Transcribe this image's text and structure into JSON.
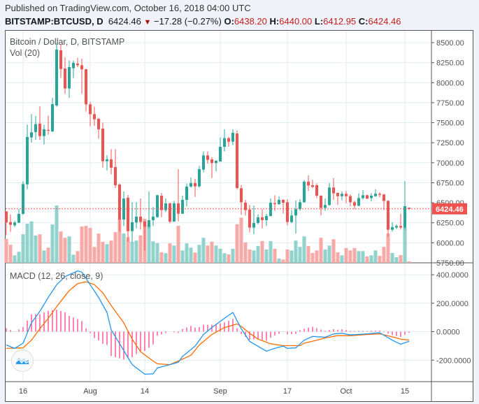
{
  "header": {
    "published": "Published on TradingView.com, October 16, 2018 04:00 UTC",
    "symbol": "BITSTAMP:BTCUSD, D",
    "last": "6424.46",
    "change": "−17.28 (−0.27%)",
    "o_label": "O:",
    "o": "6438.20",
    "h_label": "H:",
    "h": "6440.00",
    "l_label": "L:",
    "l": "6412.95",
    "c_label": "C:",
    "c": "6424.46"
  },
  "colors": {
    "up": "#26a69a",
    "down": "#ef5350",
    "up_vol": "#92d2cc",
    "down_vol": "#f7a9a7",
    "macd": "#2196f3",
    "signal": "#ff6d00",
    "histogram": "#ff0a6c",
    "grid": "#e1ecf2"
  },
  "chart_data": [
    {
      "type": "candlestick",
      "title": "Bitcoin / Dollar, D, BITSTAMP",
      "volume_label": "Vol (20)",
      "last_price_label": "6424.46",
      "ylim": [
        5750,
        8500
      ],
      "price_ticks": [
        "8500.00",
        "8250.00",
        "8000.00",
        "7750.00",
        "7500.00",
        "7250.00",
        "7000.00",
        "6750.00",
        "6500.00",
        "6250.00",
        "6000.00",
        "5750.00"
      ],
      "time_ticks": [
        {
          "label": "16",
          "date": "2018-07-16"
        },
        {
          "label": "Aug",
          "date": "2018-08-01"
        },
        {
          "label": "14",
          "date": "2018-08-14"
        },
        {
          "label": "Sep",
          "date": "2018-09-01"
        },
        {
          "label": "17",
          "date": "2018-09-17"
        },
        {
          "label": "Oct",
          "date": "2018-10-01"
        },
        {
          "label": "15",
          "date": "2018-10-15"
        }
      ],
      "start_date": "2018-07-12",
      "candles": [
        [
          6393,
          6393,
          6094,
          6254,
          102
        ],
        [
          6259,
          6353,
          6137,
          6225,
          77
        ],
        [
          6218,
          6272,
          6196,
          6254,
          32
        ],
        [
          6251,
          6420,
          6246,
          6361,
          47
        ],
        [
          6361,
          6769,
          6350,
          6734,
          122
        ],
        [
          6731,
          7476,
          6670,
          7322,
          167
        ],
        [
          7316,
          7607,
          7252,
          7380,
          177
        ],
        [
          7383,
          7584,
          7287,
          7482,
          117
        ],
        [
          7488,
          7706,
          7287,
          7333,
          122
        ],
        [
          7333,
          7473,
          7229,
          7418,
          53
        ],
        [
          7409,
          7589,
          7351,
          7400,
          65
        ],
        [
          7392,
          7811,
          7383,
          7732,
          164
        ],
        [
          7715,
          8490,
          7700,
          8413,
          245
        ],
        [
          8404,
          8480,
          8058,
          8171,
          134
        ],
        [
          8177,
          8317,
          7863,
          7927,
          107
        ],
        [
          7927,
          8276,
          7811,
          8195,
          113
        ],
        [
          8180,
          8276,
          8058,
          8247,
          35
        ],
        [
          8238,
          8311,
          8195,
          8218,
          50
        ],
        [
          8218,
          8299,
          7863,
          8166,
          155
        ],
        [
          8169,
          8169,
          7642,
          7729,
          158
        ],
        [
          7729,
          7760,
          7456,
          7607,
          149
        ],
        [
          7607,
          7700,
          7461,
          7543,
          68
        ],
        [
          7549,
          7560,
          7301,
          7418,
          125
        ],
        [
          7426,
          7502,
          6938,
          7019,
          90
        ],
        [
          7019,
          7095,
          6903,
          7042,
          80
        ],
        [
          7042,
          7170,
          6856,
          6938,
          95
        ],
        [
          6946,
          7170,
          6684,
          6719,
          131
        ],
        [
          6728,
          6740,
          6137,
          6291,
          188
        ],
        [
          6291,
          6641,
          6210,
          6553,
          125
        ],
        [
          6562,
          6597,
          6012,
          6146,
          110
        ],
        [
          6146,
          6507,
          6012,
          6257,
          90
        ],
        [
          6254,
          6507,
          6181,
          6327,
          95
        ],
        [
          6327,
          6553,
          6166,
          6260,
          117
        ],
        [
          6265,
          6270,
          5902,
          6201,
          188
        ],
        [
          6201,
          6641,
          6180,
          6283,
          160
        ],
        [
          6283,
          6449,
          6210,
          6327,
          92
        ],
        [
          6321,
          6600,
          6312,
          6594,
          84
        ],
        [
          6588,
          6623,
          6321,
          6408,
          45
        ],
        [
          6408,
          6553,
          6385,
          6492,
          41
        ],
        [
          6492,
          6500,
          6245,
          6265,
          83
        ],
        [
          6265,
          6524,
          6262,
          6492,
          74
        ],
        [
          6492,
          6920,
          6268,
          6364,
          158
        ],
        [
          6364,
          6588,
          6360,
          6536,
          53
        ],
        [
          6536,
          6740,
          6457,
          6702,
          83
        ],
        [
          6702,
          6815,
          6690,
          6746,
          65
        ],
        [
          6746,
          6798,
          6574,
          6705,
          44
        ],
        [
          6705,
          6961,
          6690,
          6920,
          77
        ],
        [
          6914,
          7141,
          6879,
          7092,
          107
        ],
        [
          7092,
          7141,
          6990,
          7036,
          74
        ],
        [
          7042,
          7068,
          6809,
          6996,
          90
        ],
        [
          6996,
          7030,
          6894,
          7025,
          74
        ],
        [
          7016,
          7316,
          7010,
          7199,
          60
        ],
        [
          7199,
          7418,
          7141,
          7307,
          41
        ],
        [
          7307,
          7320,
          7200,
          7263,
          36
        ],
        [
          7263,
          7418,
          7220,
          7374,
          60
        ],
        [
          7365,
          7403,
          6670,
          6684,
          165
        ],
        [
          6681,
          6719,
          6350,
          6507,
          193
        ],
        [
          6501,
          6536,
          6341,
          6408,
          87
        ],
        [
          6414,
          6472,
          6129,
          6190,
          57
        ],
        [
          6190,
          6466,
          6108,
          6248,
          53
        ],
        [
          6248,
          6356,
          6230,
          6318,
          72
        ],
        [
          6318,
          6420,
          6181,
          6283,
          93
        ],
        [
          6283,
          6361,
          6210,
          6335,
          57
        ],
        [
          6335,
          6553,
          6330,
          6501,
          93
        ],
        [
          6495,
          6594,
          6399,
          6484,
          60
        ],
        [
          6484,
          6580,
          6475,
          6536,
          18
        ],
        [
          6536,
          6545,
          6367,
          6501,
          14
        ],
        [
          6507,
          6545,
          6216,
          6259,
          57
        ],
        [
          6259,
          6408,
          6245,
          6341,
          53
        ],
        [
          6341,
          6530,
          6117,
          6420,
          95
        ],
        [
          6420,
          6545,
          6400,
          6507,
          68
        ],
        [
          6507,
          6786,
          6500,
          6763,
          113
        ],
        [
          6763,
          6842,
          6647,
          6716,
          72
        ],
        [
          6719,
          6786,
          6681,
          6699,
          42
        ],
        [
          6719,
          6740,
          6559,
          6588,
          53
        ],
        [
          6588,
          6594,
          6341,
          6437,
          107
        ],
        [
          6437,
          6553,
          6399,
          6472,
          57
        ],
        [
          6472,
          6746,
          6465,
          6690,
          74
        ],
        [
          6690,
          6807,
          6536,
          6617,
          101
        ],
        [
          6623,
          6630,
          6472,
          6582,
          45
        ],
        [
          6582,
          6641,
          6530,
          6612,
          32
        ],
        [
          6612,
          6647,
          6495,
          6582,
          63
        ],
        [
          6582,
          6603,
          6457,
          6507,
          53
        ],
        [
          6507,
          6524,
          6420,
          6463,
          63
        ],
        [
          6463,
          6617,
          6455,
          6559,
          50
        ],
        [
          6559,
          6658,
          6540,
          6594,
          50
        ],
        [
          6594,
          6600,
          6545,
          6553,
          27
        ],
        [
          6559,
          6620,
          6516,
          6588,
          32
        ],
        [
          6582,
          6670,
          6575,
          6612,
          53
        ],
        [
          6612,
          6632,
          6570,
          6600,
          30
        ],
        [
          6603,
          6610,
          6408,
          6524,
          68
        ],
        [
          6524,
          6530,
          6079,
          6163,
          125
        ],
        [
          6163,
          6259,
          6140,
          6196,
          42
        ],
        [
          6190,
          6230,
          6170,
          6210,
          24
        ],
        [
          6210,
          6361,
          6165,
          6190,
          33
        ],
        [
          6190,
          6772,
          6163,
          6457,
          153
        ],
        [
          6438.2,
          6440.0,
          6412.95,
          6424.46,
          6
        ]
      ],
      "candle_fields": [
        "open",
        "high",
        "low",
        "close",
        "volume"
      ]
    },
    {
      "type": "line",
      "title": "MACD (12, 26, close, 9)",
      "ylim": [
        -351,
        479
      ],
      "ticks": [
        "400.0000",
        "200.0000",
        "0.0000",
        "-200.0000"
      ],
      "macd": [
        [
          "2018-07-12",
          -93
        ],
        [
          "2018-07-14",
          -117
        ],
        [
          "2018-07-16",
          -81
        ],
        [
          "2018-07-18",
          62
        ],
        [
          "2018-07-20",
          143
        ],
        [
          "2018-07-22",
          241
        ],
        [
          "2018-07-24",
          330
        ],
        [
          "2018-07-26",
          387
        ],
        [
          "2018-07-29",
          427
        ],
        [
          "2018-07-30",
          419
        ],
        [
          "2018-08-01",
          330
        ],
        [
          "2018-08-03",
          241
        ],
        [
          "2018-08-05",
          135
        ],
        [
          "2018-08-06",
          13
        ],
        [
          "2018-08-09",
          -133
        ],
        [
          "2018-08-11",
          -231
        ],
        [
          "2018-08-14",
          -299
        ],
        [
          "2018-08-16",
          -296
        ],
        [
          "2018-08-17",
          -255
        ],
        [
          "2018-08-19",
          -239
        ],
        [
          "2018-08-20",
          -231
        ],
        [
          "2018-08-22",
          -215
        ],
        [
          "2018-08-23",
          -174
        ],
        [
          "2018-08-26",
          -101
        ],
        [
          "2018-08-28",
          -20
        ],
        [
          "2018-08-30",
          29
        ],
        [
          "2018-09-02",
          94
        ],
        [
          "2018-09-04",
          135
        ],
        [
          "2018-09-06",
          21
        ],
        [
          "2018-09-08",
          -68
        ],
        [
          "2018-09-12",
          -137
        ],
        [
          "2018-09-14",
          -117
        ],
        [
          "2018-09-16",
          -101
        ],
        [
          "2018-09-17",
          -117
        ],
        [
          "2018-09-19",
          -114
        ],
        [
          "2018-09-21",
          -60
        ],
        [
          "2018-09-23",
          -33
        ],
        [
          "2018-09-26",
          -39
        ],
        [
          "2018-09-28",
          -16
        ],
        [
          "2018-09-30",
          -11
        ],
        [
          "2018-10-02",
          -23
        ],
        [
          "2018-10-06",
          -15
        ],
        [
          "2018-10-09",
          -7
        ],
        [
          "2018-10-12",
          -60
        ],
        [
          "2018-10-14",
          -88
        ],
        [
          "2018-10-16",
          -68
        ]
      ],
      "signal": [
        [
          "2018-07-12",
          -117
        ],
        [
          "2018-07-16",
          -114
        ],
        [
          "2018-07-18",
          -60
        ],
        [
          "2018-07-20",
          21
        ],
        [
          "2018-07-22",
          94
        ],
        [
          "2018-07-24",
          176
        ],
        [
          "2018-07-27",
          289
        ],
        [
          "2018-07-29",
          338
        ],
        [
          "2018-07-31",
          351
        ],
        [
          "2018-08-02",
          330
        ],
        [
          "2018-08-04",
          273
        ],
        [
          "2018-08-06",
          184
        ],
        [
          "2018-08-09",
          62
        ],
        [
          "2018-08-11",
          -52
        ],
        [
          "2018-08-13",
          -141
        ],
        [
          "2018-08-16",
          -206
        ],
        [
          "2018-08-17",
          -226
        ],
        [
          "2018-08-20",
          -231
        ],
        [
          "2018-08-22",
          -206
        ],
        [
          "2018-08-25",
          -166
        ],
        [
          "2018-08-27",
          -93
        ],
        [
          "2018-08-30",
          -20
        ],
        [
          "2018-09-02",
          29
        ],
        [
          "2018-09-05",
          54
        ],
        [
          "2018-09-06",
          37
        ],
        [
          "2018-09-08",
          -11
        ],
        [
          "2018-09-10",
          -52
        ],
        [
          "2018-09-13",
          -85
        ],
        [
          "2018-09-16",
          -98
        ],
        [
          "2018-09-20",
          -98
        ],
        [
          "2018-09-21",
          -81
        ],
        [
          "2018-09-24",
          -60
        ],
        [
          "2018-09-26",
          -44
        ],
        [
          "2018-09-29",
          -28
        ],
        [
          "2018-10-02",
          -28
        ],
        [
          "2018-10-06",
          -20
        ],
        [
          "2018-10-09",
          -15
        ],
        [
          "2018-10-12",
          -36
        ],
        [
          "2018-10-14",
          -52
        ],
        [
          "2018-10-16",
          -60
        ]
      ]
    }
  ]
}
